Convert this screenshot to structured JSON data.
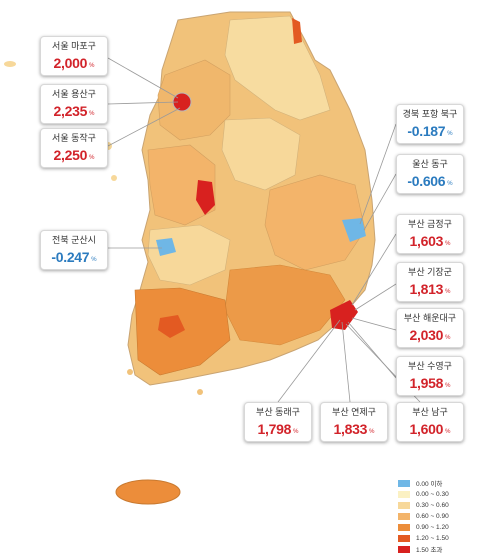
{
  "callouts": [
    {
      "id": "seoul-mapo",
      "name": "서울 마포구",
      "value": "2,000",
      "unit": "%",
      "sign": "pos"
    },
    {
      "id": "seoul-yongsan",
      "name": "서울 용산구",
      "value": "2,235",
      "unit": "%",
      "sign": "pos"
    },
    {
      "id": "seoul-dongjak",
      "name": "서울 동작구",
      "value": "2,250",
      "unit": "%",
      "sign": "pos"
    },
    {
      "id": "jeonbuk-gunsan",
      "name": "전북 군산시",
      "value": "-0.247",
      "unit": "%",
      "sign": "neg"
    },
    {
      "id": "gyeongbuk-pohang",
      "name": "경북 포항 북구",
      "value": "-0.187",
      "unit": "%",
      "sign": "neg"
    },
    {
      "id": "ulsan-dong",
      "name": "울산 동구",
      "value": "-0.606",
      "unit": "%",
      "sign": "neg"
    },
    {
      "id": "busan-geumjeong",
      "name": "부산 금정구",
      "value": "1,603",
      "unit": "%",
      "sign": "pos"
    },
    {
      "id": "busan-gijang",
      "name": "부산 기장군",
      "value": "1,813",
      "unit": "%",
      "sign": "pos"
    },
    {
      "id": "busan-haeundae",
      "name": "부산 해운대구",
      "value": "2,030",
      "unit": "%",
      "sign": "pos"
    },
    {
      "id": "busan-suyeong",
      "name": "부산 수영구",
      "value": "1,958",
      "unit": "%",
      "sign": "pos"
    },
    {
      "id": "busan-dongnae",
      "name": "부산 동래구",
      "value": "1,798",
      "unit": "%",
      "sign": "pos"
    },
    {
      "id": "busan-yeonje",
      "name": "부산 연제구",
      "value": "1,833",
      "unit": "%",
      "sign": "pos"
    },
    {
      "id": "busan-nam",
      "name": "부산 남구",
      "value": "1,600",
      "unit": "%",
      "sign": "pos"
    }
  ],
  "legend": [
    {
      "label": "0.00 이하",
      "color": "#6fb7e6"
    },
    {
      "label": "0.00 ~ 0.30",
      "color": "#fbf1c3"
    },
    {
      "label": "0.30 ~ 0.60",
      "color": "#f7d89a"
    },
    {
      "label": "0.60 ~ 0.90",
      "color": "#f3b46a"
    },
    {
      "label": "0.90 ~ 1.20",
      "color": "#ec8d3a"
    },
    {
      "label": "1.20 ~ 1.50",
      "color": "#e35a22"
    },
    {
      "label": "1.50 초과",
      "color": "#d8211f"
    }
  ]
}
